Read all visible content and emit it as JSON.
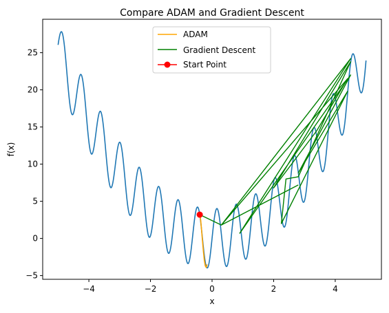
{
  "chart_data": {
    "type": "line",
    "title": "Compare ADAM and Gradient Descent",
    "xlabel": "x",
    "ylabel": "f(x)",
    "xlim": [
      -5.5,
      5.5
    ],
    "ylim": [
      -5.5,
      29.5
    ],
    "x_ticks": [
      -4,
      -2,
      0,
      2,
      4
    ],
    "x_tick_labels": [
      "−4",
      "−2",
      "0",
      "2",
      "4"
    ],
    "y_ticks": [
      -5,
      0,
      5,
      10,
      15,
      20,
      25
    ],
    "y_tick_labels": [
      "−5",
      "0",
      "5",
      "10",
      "15",
      "20",
      "25"
    ],
    "grid": false,
    "legend_position": "top-center",
    "function": {
      "expression": "x^2 + 4*sin(10*x)",
      "x_range": [
        -5,
        5
      ]
    },
    "series": [
      {
        "name": "ADAM",
        "color": "#ffa500",
        "x": [
          -0.4,
          -0.37,
          -0.34,
          -0.31,
          -0.28,
          -0.25,
          -0.22,
          -0.19,
          -0.16
        ],
        "y": [
          3.2,
          2.5,
          1.1,
          -0.4,
          -1.8,
          -3.0,
          -3.7,
          -3.9,
          -3.5
        ]
      },
      {
        "name": "Gradient Descent",
        "color": "#008000",
        "x": [
          -0.4,
          0.3,
          4.5,
          0.9,
          4.5,
          2.8,
          4.4,
          2.25,
          2.4,
          2.8,
          4.5,
          2.0,
          3.4,
          4.4,
          0.3,
          2.8
        ],
        "y": [
          3.2,
          1.8,
          24.2,
          0.7,
          22.0,
          8.8,
          19.8,
          2.0,
          8.0,
          8.3,
          23.8,
          6.8,
          14.5,
          21.5,
          1.8,
          7.2
        ]
      }
    ],
    "start_point": {
      "name": "Start Point",
      "color": "#ff0000",
      "x": -0.4,
      "y": 3.2
    }
  }
}
